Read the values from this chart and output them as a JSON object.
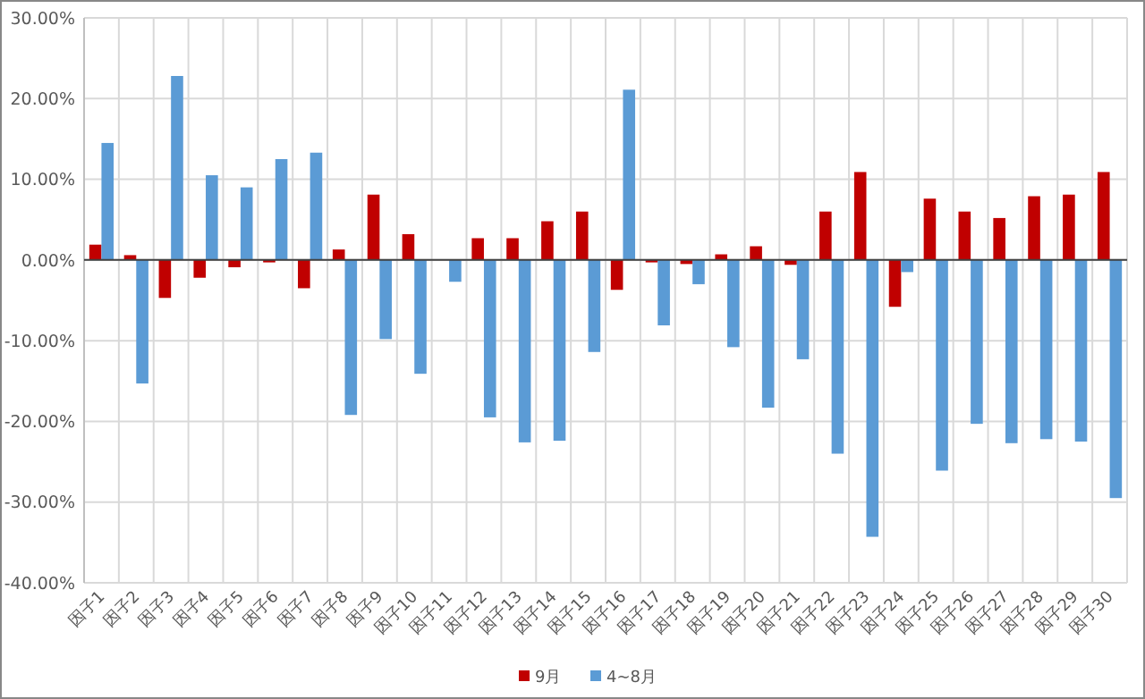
{
  "chart_data": {
    "type": "bar",
    "categories": [
      "因子1",
      "因子2",
      "因子3",
      "因子4",
      "因子5",
      "因子6",
      "因子7",
      "因子8",
      "因子9",
      "因子10",
      "因子11",
      "因子12",
      "因子13",
      "因子14",
      "因子15",
      "因子16",
      "因子17",
      "因子18",
      "因子19",
      "因子20",
      "因子21",
      "因子22",
      "因子23",
      "因子24",
      "因子25",
      "因子26",
      "因子27",
      "因子28",
      "因子29",
      "因子30"
    ],
    "series": [
      {
        "name": "9月",
        "color": "#c00000",
        "values": [
          1.9,
          0.6,
          -4.7,
          -2.2,
          -0.9,
          -0.3,
          -3.5,
          1.3,
          8.1,
          3.2,
          null,
          2.7,
          2.7,
          4.8,
          6.0,
          -3.7,
          -0.3,
          -0.5,
          0.7,
          1.7,
          -0.6,
          6.0,
          10.9,
          -5.8,
          7.6,
          6.0,
          5.2,
          7.9,
          8.1,
          10.9
        ]
      },
      {
        "name": "4~8月",
        "color": "#5b9bd5",
        "values": [
          14.5,
          -15.3,
          22.8,
          10.5,
          9.0,
          12.5,
          13.3,
          -19.2,
          -9.8,
          -14.1,
          -2.7,
          -19.5,
          -22.6,
          -22.4,
          -11.4,
          21.1,
          -8.1,
          -3.0,
          -10.8,
          -18.3,
          -12.3,
          -24.0,
          -34.3,
          -1.5,
          -26.1,
          -20.3,
          -22.7,
          -22.2,
          -22.5,
          -29.5
        ]
      }
    ],
    "ylim": [
      -40,
      30
    ],
    "yticks": [
      {
        "value": -40,
        "label": "-40.00%"
      },
      {
        "value": -30,
        "label": "-30.00%"
      },
      {
        "value": -20,
        "label": "-20.00%"
      },
      {
        "value": -10,
        "label": "-10.00%"
      },
      {
        "value": 0,
        "label": "0.00%"
      },
      {
        "value": 10,
        "label": "10.00%"
      },
      {
        "value": 20,
        "label": "20.00%"
      },
      {
        "value": 30,
        "label": "30.00%"
      }
    ],
    "grid": true,
    "legend": "bottom"
  }
}
